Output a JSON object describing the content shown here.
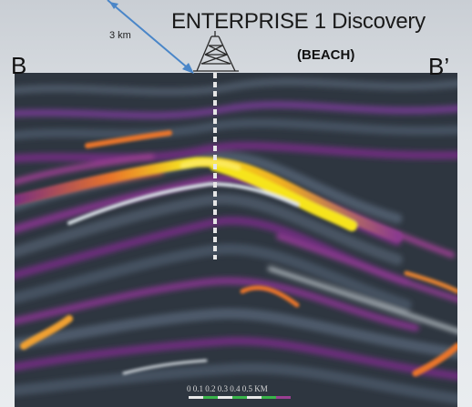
{
  "header": {
    "title": "ENTERPRISE 1 Discovery",
    "subtitle": "(BEACH)",
    "distance_label": "3 km",
    "left_marker": "B",
    "right_marker": "B’"
  },
  "well": {
    "icon": "drilling-rig-icon"
  },
  "scale": {
    "label": "0  0.1  0.2  0.3  0.4  0.5 KM"
  },
  "colors": {
    "background": "#2e3640",
    "purple": "#5a2a72",
    "magenta": "#8a3a8e",
    "orange": "#e9742a",
    "yellow": "#f6e41f",
    "white": "#dce4ea",
    "arrow": "#4a86c8"
  }
}
